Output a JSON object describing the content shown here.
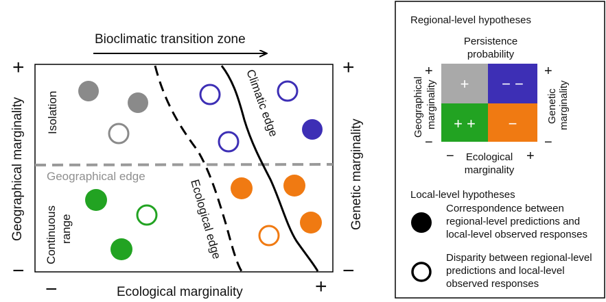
{
  "diagram": {
    "top_arrow_label": "Bioclimatic transition zone",
    "y_axis_left": "Geographical marginality",
    "y_axis_right": "Genetic marginality",
    "x_axis_bottom": "Ecological marginality",
    "plus": "+",
    "minus": "−",
    "zones": {
      "isolation": "Isolation",
      "continuous_line1": "Continuous",
      "continuous_line2": "range"
    },
    "edges": {
      "geographical": "Geographical edge",
      "ecological": "Ecological edge",
      "climatic": "Climatic edge"
    },
    "colors": {
      "grey": "#8a8a8a",
      "dashed_edge": "#999999",
      "green": "#22a322",
      "orange": "#f07a12",
      "purple": "#3d2fb5"
    }
  },
  "legend": {
    "regional_title": "Regional-level hypotheses",
    "persistence_line1": "Persistence",
    "persistence_line2": "probability",
    "grid": {
      "top_left": "+",
      "top_right": "− −",
      "bottom_left": "+ +",
      "bottom_right": "−",
      "colors": {
        "top_left": "#a9a9a9",
        "top_right": "#3d2fb5",
        "bottom_left": "#22a322",
        "bottom_right": "#f07a12"
      }
    },
    "grid_left_line1": "Geographical",
    "grid_left_line2": "marginality",
    "grid_right_line1": "Genetic",
    "grid_right_line2": "marginality",
    "grid_bottom_line1": "Ecological",
    "grid_bottom_line2": "marginality",
    "local_title": "Local-level hypotheses",
    "filled_line1": "Correspondence between",
    "filled_line2": "regional-level predictions and",
    "filled_line3": "local-level observed responses",
    "open_line1": "Disparity between regional-level",
    "open_line2": "predictions and local-level",
    "open_line3": "observed responses"
  }
}
